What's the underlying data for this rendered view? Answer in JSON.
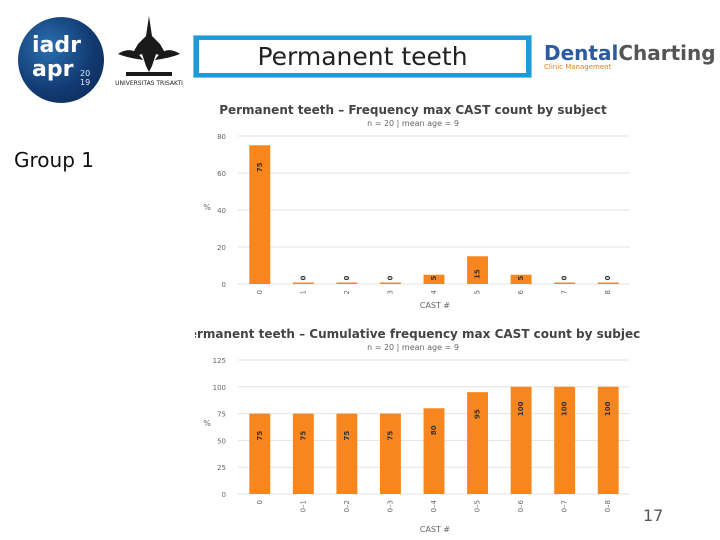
{
  "slide": {
    "title": "Permanent teeth",
    "group_label": "Group 1",
    "page_number": "17"
  },
  "logos": {
    "iadr_line1": "iadr",
    "iadr_line2": "apr",
    "iadr_year_top": "20",
    "iadr_year_bottom": "19",
    "university": "UNIVERSITAS TRISAKTI",
    "dental_part1": "Dental",
    "dental_part2": "Charting",
    "dental_sub": "Clinic Management"
  },
  "colors": {
    "bar": "#f7861f",
    "title_bar": "#1e9ad6",
    "dental_blue": "#2c5aa0"
  },
  "chart_data": [
    {
      "type": "bar",
      "title": "Permanent teeth – Frequency max CAST count by subject",
      "subtitle": "n = 20 | mean age = 9",
      "xlabel": "CAST #",
      "ylabel": "%",
      "categories": [
        "0",
        "1",
        "2",
        "3",
        "4",
        "5",
        "6",
        "7",
        "8"
      ],
      "values": [
        75,
        0,
        0,
        0,
        5,
        15,
        5,
        0,
        0
      ],
      "ylim": [
        0,
        80
      ],
      "yticks": [
        0,
        20,
        40,
        60,
        80
      ],
      "grid": true,
      "legend": "none"
    },
    {
      "type": "bar",
      "title": "Permanent teeth – Cumulative frequency max CAST count by subject",
      "subtitle": "n = 20 | mean age = 9",
      "xlabel": "CAST #",
      "ylabel": "%",
      "categories": [
        "0",
        "0–1",
        "0–2",
        "0–3",
        "0–4",
        "0–5",
        "0–6",
        "0–7",
        "0–8"
      ],
      "values": [
        75,
        75,
        75,
        75,
        80,
        95,
        100,
        100,
        100
      ],
      "ylim": [
        0,
        125
      ],
      "yticks": [
        0,
        25,
        50,
        75,
        100,
        125
      ],
      "grid": true,
      "legend": "none"
    }
  ]
}
